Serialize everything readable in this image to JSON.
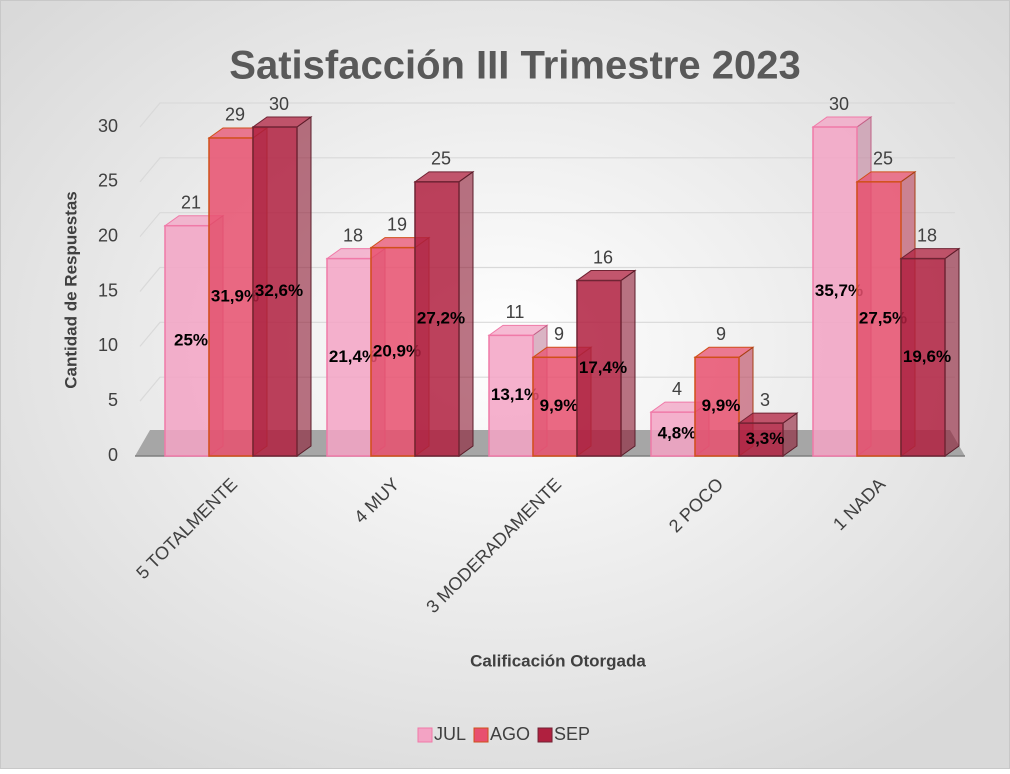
{
  "chart_data": {
    "type": "bar3d",
    "title": "Satisfacción III Trimestre 2023",
    "x_label": "Calificación  Otorgada",
    "y_label": "Cantidad de Respuestas",
    "categories": [
      "5 TOTALMENTE",
      "4 MUY",
      "3 MODERADAMENTE",
      "2 POCO",
      "1 NADA"
    ],
    "series": [
      {
        "name": "JUL",
        "color": "#f3a3c4",
        "stroke": "#f07aa8",
        "values": [
          21,
          18,
          11,
          4,
          30
        ],
        "percent_labels": [
          "25%",
          "21,4%",
          "13,1%",
          "4,8%",
          "35,7%"
        ]
      },
      {
        "name": "AGO",
        "color": "#e8506f",
        "stroke": "#d0501a",
        "values": [
          29,
          19,
          9,
          9,
          25
        ],
        "percent_labels": [
          "31,9%",
          "20,9%",
          "9,9%",
          "9,9%",
          "27,5%"
        ]
      },
      {
        "name": "SEP",
        "color": "#b0203f",
        "stroke": "#702434",
        "values": [
          30,
          25,
          16,
          3,
          18
        ],
        "percent_labels": [
          "32,6%",
          "27,2%",
          "17,4%",
          "3,3%",
          "19,6%"
        ]
      }
    ],
    "ylim": [
      0,
      30
    ],
    "yticks": [
      0,
      5,
      10,
      15,
      20,
      25,
      30
    ],
    "grid": true,
    "legend": "bottom"
  }
}
